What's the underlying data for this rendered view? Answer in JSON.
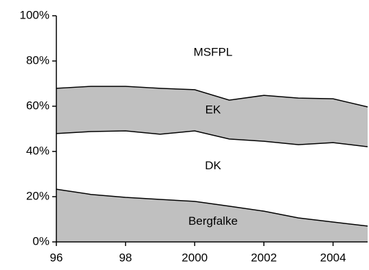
{
  "chart_data": {
    "type": "stacked_area",
    "x": [
      1996,
      1997,
      1998,
      1999,
      2000,
      2001,
      2002,
      2003,
      2004,
      2005
    ],
    "series": [
      {
        "name": "Bergfalke",
        "color": "#c0c0c0",
        "values": [
          23.3,
          21,
          19.7,
          18.8,
          17.9,
          15.8,
          13.6,
          10.6,
          8.8,
          7
        ]
      },
      {
        "name": "DK",
        "color": "#ffffff",
        "values": [
          24.6,
          27.8,
          29.4,
          28.8,
          31.2,
          29.7,
          30.9,
          32.4,
          35.1,
          35.1
        ]
      },
      {
        "name": "EK",
        "color": "#c0c0c0",
        "values": [
          20,
          20,
          19.7,
          20.3,
          18.2,
          17.2,
          20.3,
          20.6,
          19.4,
          17.6
        ]
      },
      {
        "name": "MSFPL",
        "color": "#ffffff",
        "values": [
          32.1,
          31.2,
          31.2,
          32.1,
          32.7,
          37.3,
          35.2,
          36.4,
          36.7,
          40.3
        ]
      }
    ],
    "xlim": [
      1996,
      2005
    ],
    "xticks": [
      {
        "value": 1996,
        "label": "96"
      },
      {
        "value": 1998,
        "label": "98"
      },
      2000,
      2002,
      2004
    ],
    "ylim": [
      0,
      100
    ],
    "yticks": [
      {
        "value": 0,
        "label": "0%"
      },
      {
        "value": 20,
        "label": "20%"
      },
      {
        "value": 40,
        "label": "40%"
      },
      {
        "value": 60,
        "label": "60%"
      },
      {
        "value": 80,
        "label": "80%"
      },
      {
        "value": 100,
        "label": "100%"
      }
    ]
  }
}
